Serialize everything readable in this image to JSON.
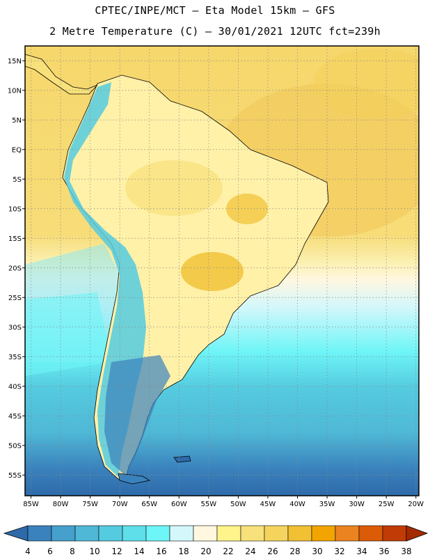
{
  "header": {
    "line1": "CPTEC/INPE/MCT –  Eta Model 15km – GFS",
    "line2": "2 Metre Temperature (C) – 30/01/2021 12UTC fct=239h"
  },
  "map": {
    "lon_range": [
      -86,
      -19.5
    ],
    "lat_range": [
      -58.5,
      17.5
    ],
    "lat_ticks": [
      {
        "value": 15,
        "label": "15N"
      },
      {
        "value": 10,
        "label": "10N"
      },
      {
        "value": 5,
        "label": "5N"
      },
      {
        "value": 0,
        "label": "EQ"
      },
      {
        "value": -5,
        "label": "5S"
      },
      {
        "value": -10,
        "label": "10S"
      },
      {
        "value": -15,
        "label": "15S"
      },
      {
        "value": -20,
        "label": "20S"
      },
      {
        "value": -25,
        "label": "25S"
      },
      {
        "value": -30,
        "label": "30S"
      },
      {
        "value": -35,
        "label": "35S"
      },
      {
        "value": -40,
        "label": "40S"
      },
      {
        "value": -45,
        "label": "45S"
      },
      {
        "value": -50,
        "label": "50S"
      },
      {
        "value": -55,
        "label": "55S"
      }
    ],
    "lon_ticks": [
      {
        "value": -85,
        "label": "85W"
      },
      {
        "value": -80,
        "label": "80W"
      },
      {
        "value": -75,
        "label": "75W"
      },
      {
        "value": -70,
        "label": "70W"
      },
      {
        "value": -65,
        "label": "65W"
      },
      {
        "value": -60,
        "label": "60W"
      },
      {
        "value": -55,
        "label": "55W"
      },
      {
        "value": -50,
        "label": "50W"
      },
      {
        "value": -45,
        "label": "45W"
      },
      {
        "value": -40,
        "label": "40W"
      },
      {
        "value": -35,
        "label": "35W"
      },
      {
        "value": -30,
        "label": "30W"
      },
      {
        "value": -25,
        "label": "25W"
      },
      {
        "value": -20,
        "label": "20W"
      }
    ]
  },
  "colorbar": {
    "colors": [
      "#2e6aa9",
      "#3a82bd",
      "#45a0cc",
      "#4fb8d6",
      "#55cbe0",
      "#5fdfea",
      "#6ef5f7",
      "#d4f7fb",
      "#fff7e0",
      "#fff38c",
      "#f8e07a",
      "#f5d45e",
      "#f1c033",
      "#f2a500",
      "#eb8420",
      "#dc5b06",
      "#c03b05",
      "#a52a00"
    ],
    "labels": [
      "4",
      "6",
      "8",
      "10",
      "12",
      "14",
      "16",
      "18",
      "20",
      "22",
      "24",
      "26",
      "28",
      "30",
      "32",
      "34",
      "36",
      "38"
    ]
  }
}
